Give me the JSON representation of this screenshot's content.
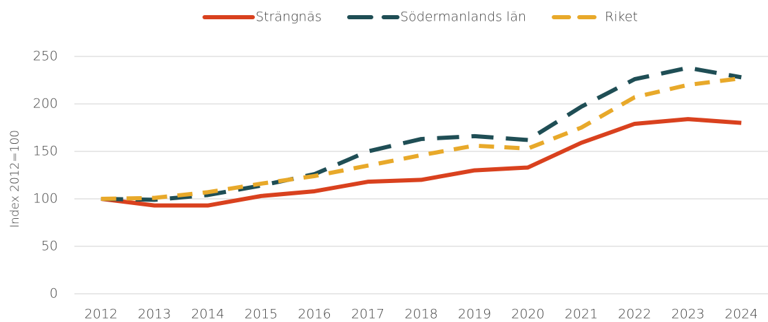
{
  "chart_data": {
    "type": "line",
    "ylabel": "Index 2012=100",
    "categories": [
      "2012",
      "2013",
      "2014",
      "2015",
      "2016",
      "2017",
      "2018",
      "2019",
      "2020",
      "2021",
      "2022",
      "2023",
      "2024"
    ],
    "series": [
      {
        "name": "Strängnäs",
        "color": "#d9411e",
        "values": [
          100,
          93,
          93,
          103,
          108,
          118,
          120,
          130,
          133,
          159,
          179,
          184,
          180
        ]
      },
      {
        "name": "Södermanlands län",
        "color": "#1f4e55",
        "values": [
          100,
          99,
          104,
          114,
          126,
          150,
          163,
          166,
          162,
          197,
          226,
          238,
          228
        ]
      },
      {
        "name": "Riket",
        "color": "#e8a92a",
        "values": [
          100,
          101,
          107,
          116,
          124,
          135,
          146,
          156,
          153,
          175,
          207,
          220,
          227
        ]
      }
    ],
    "ylim": [
      0,
      250
    ],
    "yticks": [
      0,
      50,
      100,
      150,
      200,
      250
    ],
    "grid": true,
    "legend": "top"
  }
}
